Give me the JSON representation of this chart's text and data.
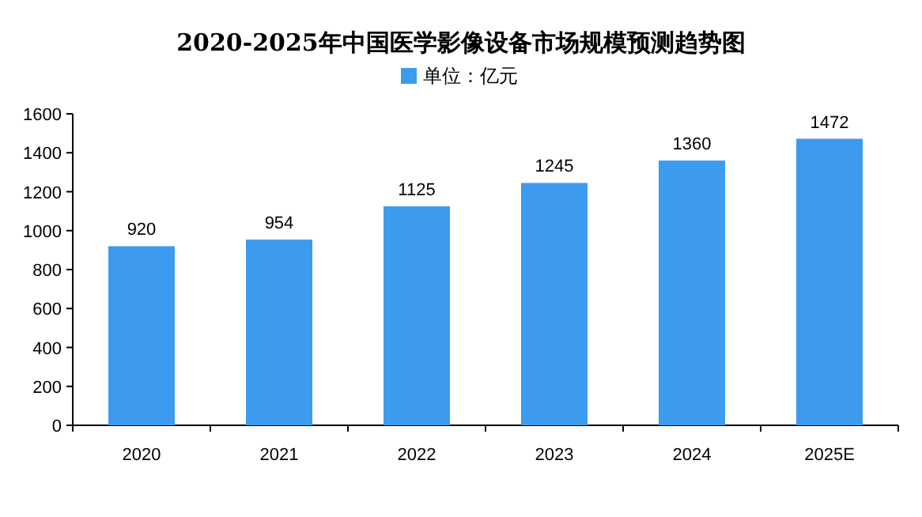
{
  "chart_data": {
    "type": "bar",
    "title": "2020-2025年中国医学影像设备市场规模预测趋势图",
    "categories": [
      "2020",
      "2021",
      "2022",
      "2023",
      "2024",
      "2025E"
    ],
    "series": [
      {
        "name": "单位：亿元",
        "color": "#3d9bef",
        "values": [
          920,
          954,
          1125,
          1245,
          1360,
          1472
        ]
      }
    ],
    "ylim": [
      0,
      1600
    ],
    "yticks": [
      0,
      200,
      400,
      600,
      800,
      1000,
      1200,
      1400,
      1600
    ],
    "data_labels": true,
    "legend": "top",
    "grid": false
  }
}
